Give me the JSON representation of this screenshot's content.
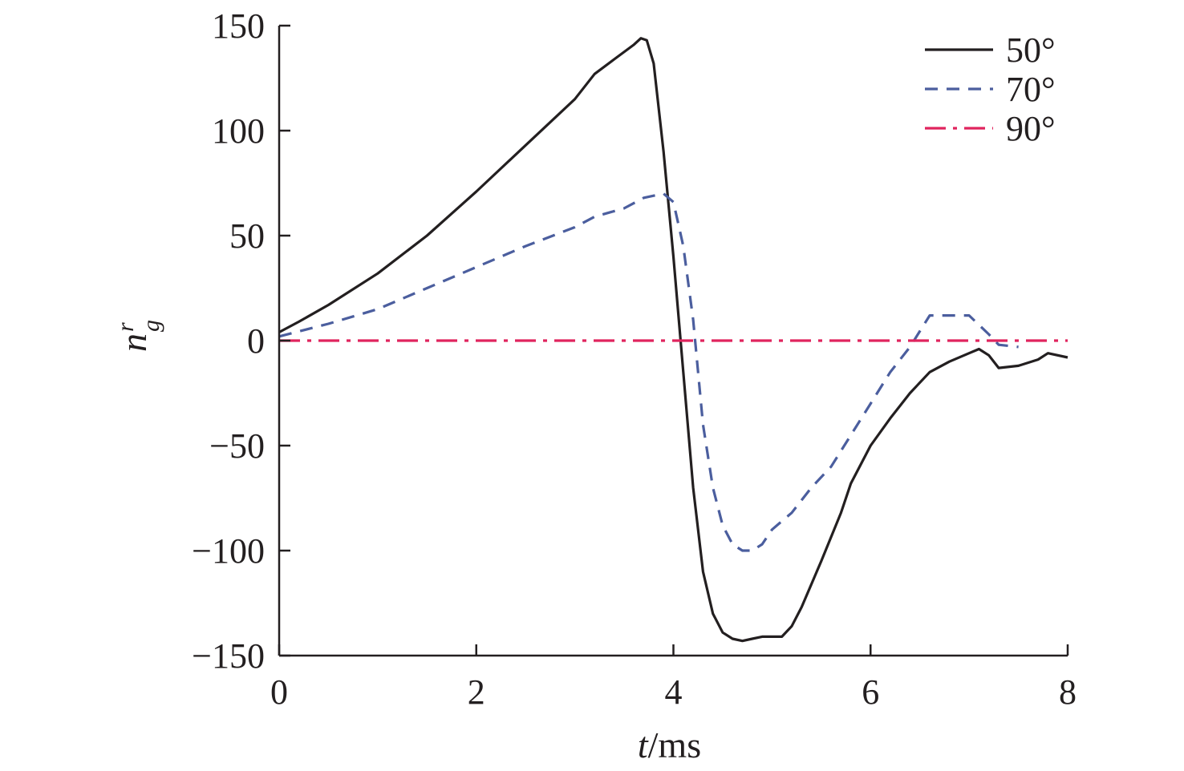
{
  "chart_data": {
    "type": "line",
    "xlabel": {
      "italic": "t",
      "rest": "/ms"
    },
    "ylabel": {
      "base": "n",
      "sup": "r",
      "sub": "g"
    },
    "xlim": [
      0,
      8
    ],
    "ylim": [
      -150,
      150
    ],
    "xticks": [
      0,
      2,
      4,
      6,
      8
    ],
    "yticks": [
      150,
      100,
      50,
      0,
      -50,
      -100,
      -150
    ],
    "xtick_labels": [
      "0",
      "2",
      "4",
      "6",
      "8"
    ],
    "ytick_labels": [
      "150",
      "100",
      "50",
      "0",
      "−50",
      "−100",
      "−150"
    ],
    "grid": false,
    "legend_position": "top-right",
    "series": [
      {
        "name": "50°",
        "color": "#231f20",
        "dash": "solid",
        "x": [
          0,
          0.2,
          0.5,
          1.0,
          1.5,
          2.0,
          2.5,
          3.0,
          3.2,
          3.4,
          3.6,
          3.67,
          3.73,
          3.8,
          3.9,
          4.0,
          4.1,
          4.2,
          4.3,
          4.4,
          4.5,
          4.6,
          4.7,
          4.8,
          4.9,
          5.0,
          5.1,
          5.2,
          5.3,
          5.5,
          5.7,
          5.8,
          6.0,
          6.2,
          6.4,
          6.6,
          6.8,
          7.0,
          7.1,
          7.2,
          7.3,
          7.5,
          7.7,
          7.8,
          8.0
        ],
        "y": [
          4,
          9,
          17,
          32,
          50,
          71,
          93,
          115,
          127,
          134,
          141,
          144,
          143,
          132,
          90,
          40,
          -15,
          -70,
          -110,
          -130,
          -139,
          -142,
          -143,
          -142,
          -141,
          -141,
          -141,
          -136,
          -127,
          -105,
          -82,
          -68,
          -50,
          -37,
          -25,
          -15,
          -10,
          -6,
          -4,
          -7,
          -13,
          -12,
          -9,
          -6,
          -8
        ]
      },
      {
        "name": "70°",
        "color": "#4b5e9e",
        "dash": "dashed",
        "x": [
          0,
          0.5,
          1.0,
          1.5,
          2.0,
          2.5,
          3.0,
          3.2,
          3.5,
          3.7,
          3.9,
          4.0,
          4.1,
          4.2,
          4.3,
          4.4,
          4.5,
          4.6,
          4.7,
          4.8,
          4.9,
          5.0,
          5.2,
          5.4,
          5.6,
          5.8,
          6.0,
          6.2,
          6.4,
          6.6,
          6.8,
          7.0,
          7.2,
          7.3,
          7.5
        ],
        "y": [
          2,
          8,
          15,
          25,
          35,
          45,
          54,
          59,
          63,
          68,
          70,
          66,
          45,
          10,
          -40,
          -70,
          -88,
          -97,
          -100,
          -100,
          -97,
          -90,
          -82,
          -70,
          -60,
          -45,
          -30,
          -15,
          -3,
          12,
          12,
          12,
          3,
          -2,
          -3
        ]
      },
      {
        "name": "90°",
        "color": "#e0245e",
        "dash": "dashdot",
        "x": [
          0,
          8
        ],
        "y": [
          0,
          0
        ]
      }
    ]
  }
}
